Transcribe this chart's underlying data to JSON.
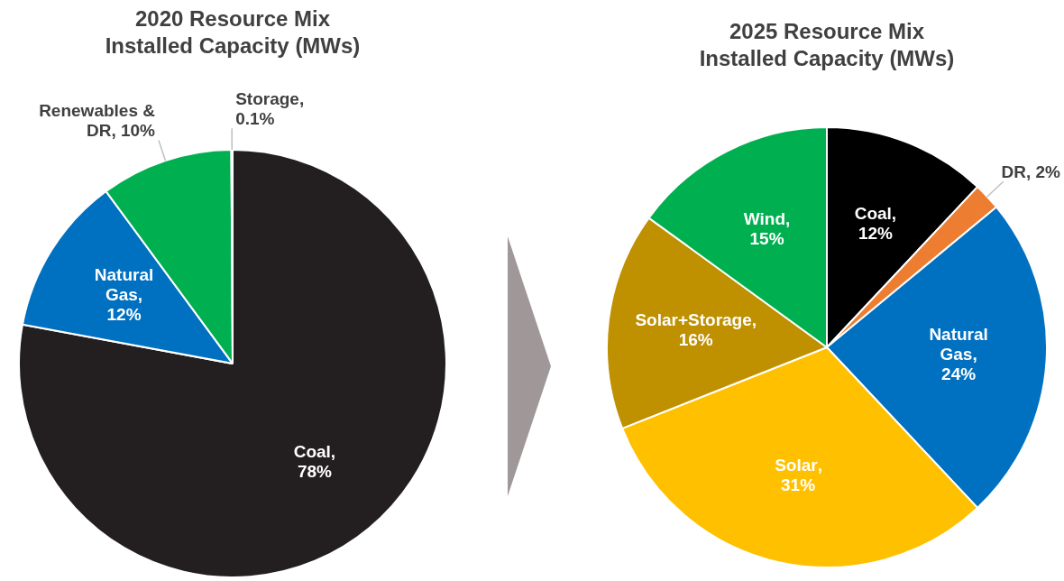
{
  "chart_data": [
    {
      "type": "pie",
      "title": "2020 Resource Mix Installed Capacity (MWs)",
      "categories": [
        "Coal",
        "Natural Gas",
        "Renewables & DR",
        "Storage"
      ],
      "values": [
        78,
        12,
        10,
        0.1
      ],
      "colors": [
        "#231f20",
        "#0070c0",
        "#00b050",
        "#e0e0e0"
      ],
      "value_labels": [
        ", 78%",
        ", 12%",
        ", 10%",
        ", 0.1%"
      ]
    },
    {
      "type": "pie",
      "title": "2025 Resource Mix Installed Capacity (MWs)",
      "categories": [
        "Coal",
        "DR",
        "Natural Gas",
        "Solar",
        "Solar+Storage",
        "Wind"
      ],
      "values": [
        12,
        2,
        24,
        31,
        16,
        15
      ],
      "colors": [
        "#000000",
        "#ed7d31",
        "#0070c0",
        "#ffc000",
        "#bf9000",
        "#00b050"
      ],
      "value_labels": [
        ", 12%",
        ", 2%",
        ", 24%",
        ", 31%",
        ", 16%",
        ", 15%"
      ]
    }
  ]
}
